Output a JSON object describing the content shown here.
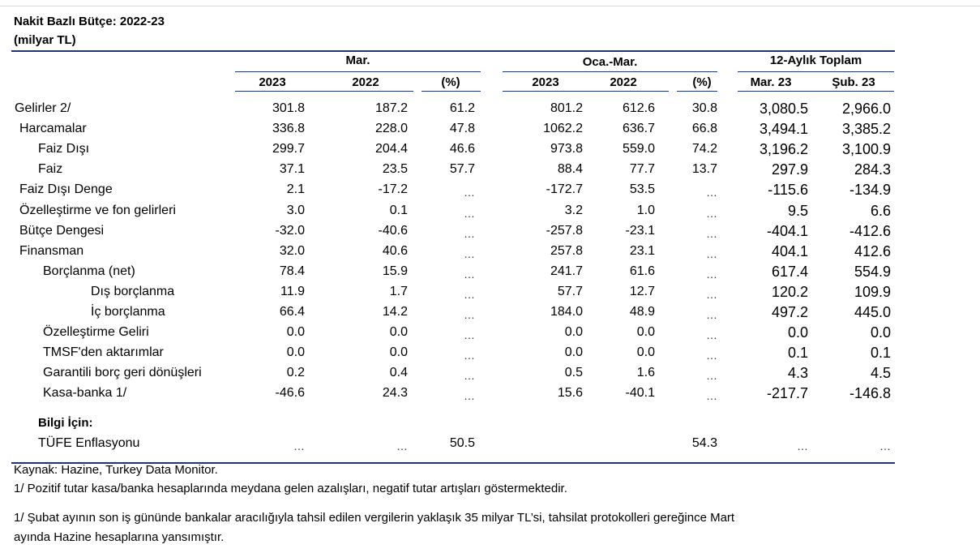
{
  "title_line1": "Nakit Bazlı Bütçe: 2022-23",
  "title_line2": "(milyar TL)",
  "groups": {
    "mar": "Mar.",
    "oca_mar": "Oca.-Mar.",
    "twelve_month": "12-Aylık Toplam"
  },
  "subheaders": [
    "2023",
    "2022",
    "(%)",
    "2023",
    "2022",
    "(%)",
    "Mar. 23",
    "Şub. 23"
  ],
  "rows": [
    {
      "label": "Gelirler 2/",
      "indent": 0,
      "v": [
        "301.8",
        "187.2",
        "61.2",
        "801.2",
        "612.6",
        "30.8",
        "3,080.5",
        "2,966.0"
      ]
    },
    {
      "label": "Harcamalar",
      "indent": 1,
      "v": [
        "336.8",
        "228.0",
        "47.8",
        "1062.2",
        "636.7",
        "66.8",
        "3,494.1",
        "3,385.2"
      ]
    },
    {
      "label": "Faiz Dışı",
      "indent": 2,
      "v": [
        "299.7",
        "204.4",
        "46.6",
        "973.8",
        "559.0",
        "74.2",
        "3,196.2",
        "3,100.9"
      ]
    },
    {
      "label": "Faiz",
      "indent": 2,
      "v": [
        "37.1",
        "23.5",
        "57.7",
        "88.4",
        "77.7",
        "13.7",
        "297.9",
        "284.3"
      ]
    },
    {
      "label": "Faiz Dışı Denge",
      "indent": 1,
      "v": [
        "2.1",
        "-17.2",
        "…",
        "-172.7",
        "53.5",
        "…",
        "-115.6",
        "-134.9"
      ]
    },
    {
      "label": "Özelleştirme ve fon gelirleri",
      "indent": 1,
      "v": [
        "3.0",
        "0.1",
        "…",
        "3.2",
        "1.0",
        "…",
        "9.5",
        "6.6"
      ]
    },
    {
      "label": "Bütçe Dengesi",
      "indent": 1,
      "v": [
        "-32.0",
        "-40.6",
        "…",
        "-257.8",
        "-23.1",
        "…",
        "-404.1",
        "-412.6"
      ]
    },
    {
      "label": "Finansman",
      "indent": 1,
      "v": [
        "32.0",
        "40.6",
        "…",
        "257.8",
        "23.1",
        "…",
        "404.1",
        "412.6"
      ]
    },
    {
      "label": "Borçlanma (net)",
      "indent": 3,
      "v": [
        "78.4",
        "15.9",
        "…",
        "241.7",
        "61.6",
        "…",
        "617.4",
        "554.9"
      ]
    },
    {
      "label": "Dış borçlanma",
      "indent": 4,
      "v": [
        "11.9",
        "1.7",
        "…",
        "57.7",
        "12.7",
        "…",
        "120.2",
        "109.9"
      ]
    },
    {
      "label": "İç borçlanma",
      "indent": 4,
      "v": [
        "66.4",
        "14.2",
        "…",
        "184.0",
        "48.9",
        "…",
        "497.2",
        "445.0"
      ]
    },
    {
      "label": "Özelleştirme Geliri",
      "indent": 3,
      "v": [
        "0.0",
        "0.0",
        "…",
        "0.0",
        "0.0",
        "…",
        "0.0",
        "0.0"
      ]
    },
    {
      "label": "TMSF'den aktarımlar",
      "indent": 3,
      "v": [
        "0.0",
        "0.0",
        "…",
        "0.0",
        "0.0",
        "…",
        "0.1",
        "0.1"
      ]
    },
    {
      "label": "Garantili borç geri dönüşleri",
      "indent": 3,
      "v": [
        "0.2",
        "0.4",
        "…",
        "0.5",
        "1.6",
        "…",
        "4.3",
        "4.5"
      ]
    },
    {
      "label": "Kasa-banka 1/",
      "indent": 3,
      "v": [
        "-46.6",
        "24.3",
        "…",
        "15.6",
        "-40.1",
        "…",
        "-217.7",
        "-146.8"
      ]
    }
  ],
  "info_title": "Bilgi İçin:",
  "info_row": {
    "label": "TÜFE Enflasyonu",
    "v": [
      "…",
      "…",
      "50.5",
      "",
      "",
      "54.3",
      "…",
      "…"
    ]
  },
  "notes": {
    "source": "Kaynak: Hazine, Turkey Data Monitor.",
    "note1": "1/ Pozitif tutar kasa/banka hesaplarında meydana gelen azalışları, negatif tutar artışları göstermektedir.",
    "note2_line1": "1/ Şubat ayının son iş gününde bankalar aracılığıyla tahsil edilen vergilerin yaklaşık 35 milyar TL’si, tahsilat protokolleri gereğince Mart",
    "note2_line2": "ayında Hazine hesaplarına yansımıştır."
  }
}
